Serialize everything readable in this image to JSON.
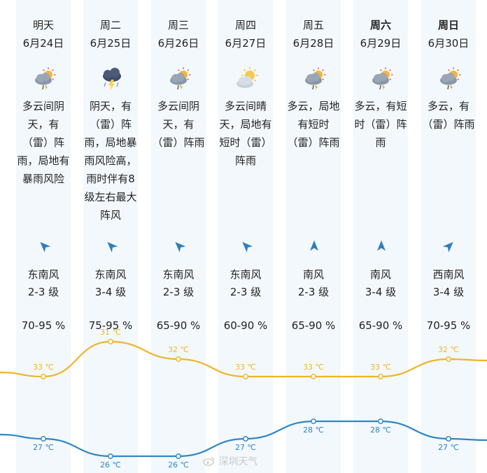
{
  "days": [
    {
      "day": "明天",
      "date": "6月24日",
      "icon": "cloudy-thunder-rain-icon",
      "desc": "多云间阴\n天，有\n（雷）阵\n雨，局地有\n暴雨风险",
      "wind_dir": "东南风",
      "wind_level": "2-3 级",
      "humidity": "70-95 %",
      "weekend": false
    },
    {
      "day": "周二",
      "date": "6月25日",
      "icon": "thunderstorm-icon",
      "desc": "阴天，有\n（雷）阵\n雨，局地暴\n雨风险高，\n雨时伴有8\n级左右最大\n阵风",
      "wind_dir": "东南风",
      "wind_level": "3-4 级",
      "humidity": "75-95 %",
      "weekend": false
    },
    {
      "day": "周三",
      "date": "6月26日",
      "icon": "cloudy-thunder-rain-icon",
      "desc": "多云间阴\n天，有\n（雷）阵雨",
      "wind_dir": "东南风",
      "wind_level": "2-3 级",
      "humidity": "65-90 %",
      "weekend": false
    },
    {
      "day": "周四",
      "date": "6月27日",
      "icon": "partly-sunny-icon",
      "desc": "多云间晴\n天，局地有\n短时（雷）\n阵雨",
      "wind_dir": "东南风",
      "wind_level": "2-3 级",
      "humidity": "60-90 %",
      "weekend": false
    },
    {
      "day": "周五",
      "date": "6月28日",
      "icon": "cloudy-thunder-rain-icon",
      "desc": "多云，局地\n有短时\n（雷）阵雨",
      "wind_dir": "南风",
      "wind_level": "2-3 级",
      "humidity": "65-90 %",
      "weekend": false
    },
    {
      "day": "周六",
      "date": "6月29日",
      "icon": "cloudy-thunder-rain-icon",
      "desc": "多云，有短\n时（雷）阵\n雨",
      "wind_dir": "南风",
      "wind_level": "3-4 级",
      "humidity": "65-90 %",
      "weekend": true
    },
    {
      "day": "周日",
      "date": "6月30日",
      "icon": "cloudy-thunder-rain-icon",
      "desc": "多云，有\n（雷）阵雨",
      "wind_dir": "西南风",
      "wind_level": "3-4 级",
      "humidity": "70-95 %",
      "weekend": true
    }
  ],
  "colors": {
    "high": "#f0b429",
    "low": "#2f86c8",
    "background": "#f3f8fc"
  },
  "chart_data": {
    "type": "line",
    "categories": [
      "6月24日",
      "6月25日",
      "6月26日",
      "6月27日",
      "6月28日",
      "6月29日",
      "6月30日"
    ],
    "series": [
      {
        "values": [
          33,
          31,
          32,
          33,
          33,
          33,
          32
        ],
        "labels": [
          "33 ℃",
          "31 ℃",
          "32 ℃",
          "33 ℃",
          "33 ℃",
          "33 ℃",
          "32 ℃"
        ]
      },
      {
        "values": [
          27,
          26,
          26,
          27,
          28,
          28,
          27
        ],
        "labels": [
          "27 ℃",
          "26 ℃",
          "26 ℃",
          "27 ℃",
          "28 ℃",
          "28 ℃",
          "27 ℃"
        ]
      }
    ]
  },
  "watermark": "深圳天气"
}
